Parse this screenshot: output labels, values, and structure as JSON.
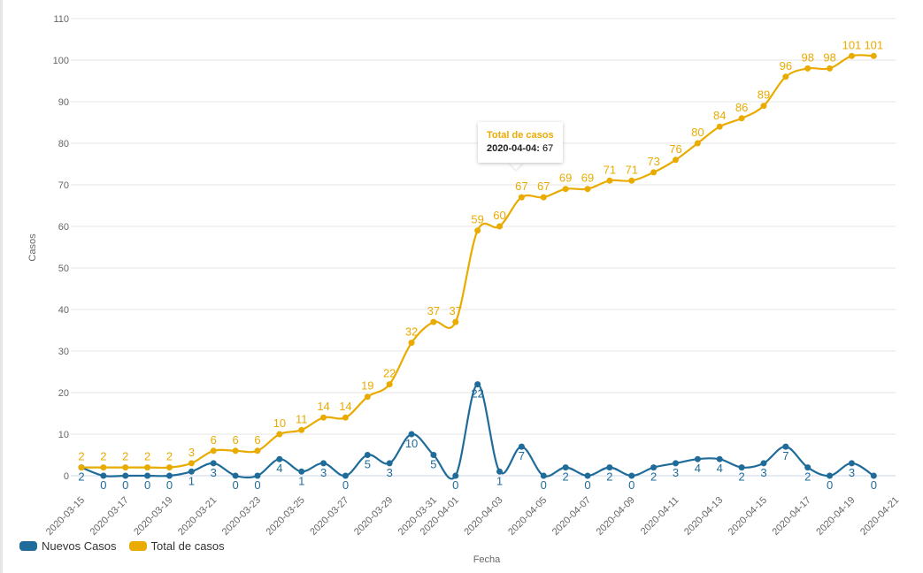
{
  "chart_data": {
    "type": "line",
    "xlabel": "Fecha",
    "ylabel": "Casos",
    "ylim": [
      0,
      110
    ],
    "yticks": [
      0,
      10,
      20,
      30,
      40,
      50,
      60,
      70,
      80,
      90,
      100,
      110
    ],
    "grid": true,
    "legend_placement": "bottom-left",
    "x": [
      "2020-03-15",
      "2020-03-16",
      "2020-03-17",
      "2020-03-18",
      "2020-03-19",
      "2020-03-20",
      "2020-03-21",
      "2020-03-22",
      "2020-03-23",
      "2020-03-24",
      "2020-03-25",
      "2020-03-26",
      "2020-03-27",
      "2020-03-28",
      "2020-03-29",
      "2020-03-30",
      "2020-03-31",
      "2020-04-01",
      "2020-04-02",
      "2020-04-03",
      "2020-04-04",
      "2020-04-05",
      "2020-04-06",
      "2020-04-07",
      "2020-04-08",
      "2020-04-09",
      "2020-04-10",
      "2020-04-11",
      "2020-04-12",
      "2020-04-13",
      "2020-04-14",
      "2020-04-15",
      "2020-04-16",
      "2020-04-17",
      "2020-04-18",
      "2020-04-19",
      "2020-04-20"
    ],
    "xtick_labels": [
      "2020-03-15",
      "2020-03-17",
      "2020-03-19",
      "2020-03-21",
      "2020-03-23",
      "2020-03-25",
      "2020-03-27",
      "2020-03-29",
      "2020-03-31",
      "2020-04-01",
      "2020-04-03",
      "2020-04-05",
      "2020-04-07",
      "2020-04-09",
      "2020-04-11",
      "2020-04-13",
      "2020-04-15",
      "2020-04-17",
      "2020-04-19",
      "2020-04-21"
    ],
    "series": [
      {
        "name": "Nuevos Casos",
        "color": "#1f6b99",
        "values": [
          2,
          0,
          0,
          0,
          0,
          1,
          3,
          0,
          0,
          4,
          1,
          3,
          0,
          5,
          3,
          10,
          5,
          0,
          22,
          1,
          7,
          0,
          2,
          0,
          2,
          0,
          2,
          3,
          4,
          4,
          2,
          3,
          7,
          2,
          0,
          3,
          0
        ]
      },
      {
        "name": "Total de casos",
        "color": "#eaab00",
        "values": [
          2,
          2,
          2,
          2,
          2,
          3,
          6,
          6,
          6,
          10,
          11,
          14,
          14,
          19,
          22,
          32,
          37,
          37,
          59,
          60,
          67,
          67,
          69,
          69,
          71,
          71,
          73,
          76,
          80,
          84,
          86,
          89,
          96,
          98,
          98,
          101,
          101
        ]
      }
    ],
    "tooltip": {
      "series": "Total de casos",
      "date": "2020-04-04:",
      "value": "67"
    }
  }
}
